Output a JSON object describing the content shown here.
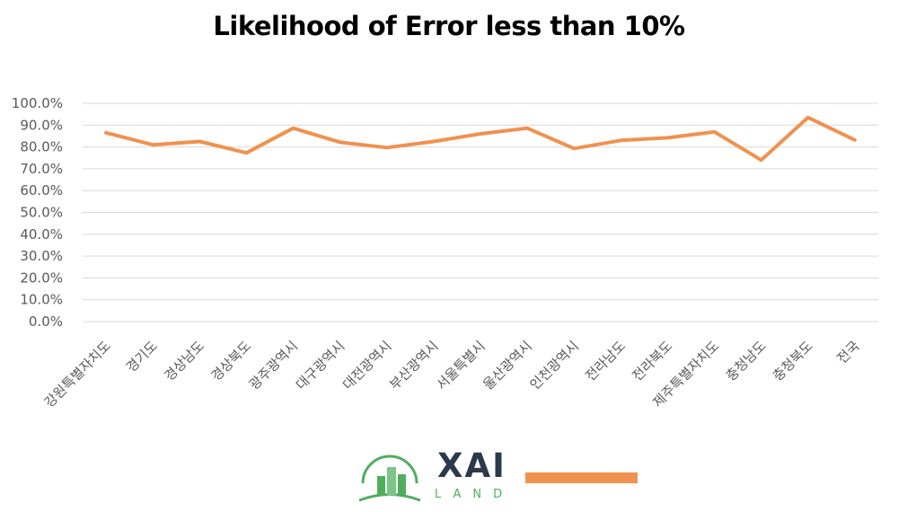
{
  "chart_data": {
    "type": "line",
    "title": "Likelihood of Error less than 10%",
    "xlabel": "",
    "ylabel": "",
    "ylim": [
      0,
      100
    ],
    "yticks": [
      "0.0%",
      "10.0%",
      "20.0%",
      "30.0%",
      "40.0%",
      "50.0%",
      "60.0%",
      "70.0%",
      "80.0%",
      "90.0%",
      "100.0%"
    ],
    "grid": true,
    "categories": [
      "강원특별자치도",
      "경기도",
      "경상남도",
      "경상북도",
      "광주광역시",
      "대구광역시",
      "대전광역시",
      "부산광역시",
      "서울특별시",
      "울산광역시",
      "인천광역시",
      "전라남도",
      "전라북도",
      "제주특별자치도",
      "충청남도",
      "충청북도",
      "전국"
    ],
    "series": [
      {
        "color": "#f0914e",
        "values": [
          86.5,
          81.0,
          82.5,
          77.3,
          88.6,
          82.2,
          79.7,
          82.5,
          86.0,
          88.6,
          79.3,
          83.0,
          84.2,
          86.9,
          74.0,
          93.5,
          83.2
        ]
      }
    ]
  },
  "logo": {
    "name": "XAI",
    "sub": "LAND",
    "icon": "building-logo-icon",
    "accent": "#4fae5e",
    "text_color": "#2b3a4a"
  }
}
